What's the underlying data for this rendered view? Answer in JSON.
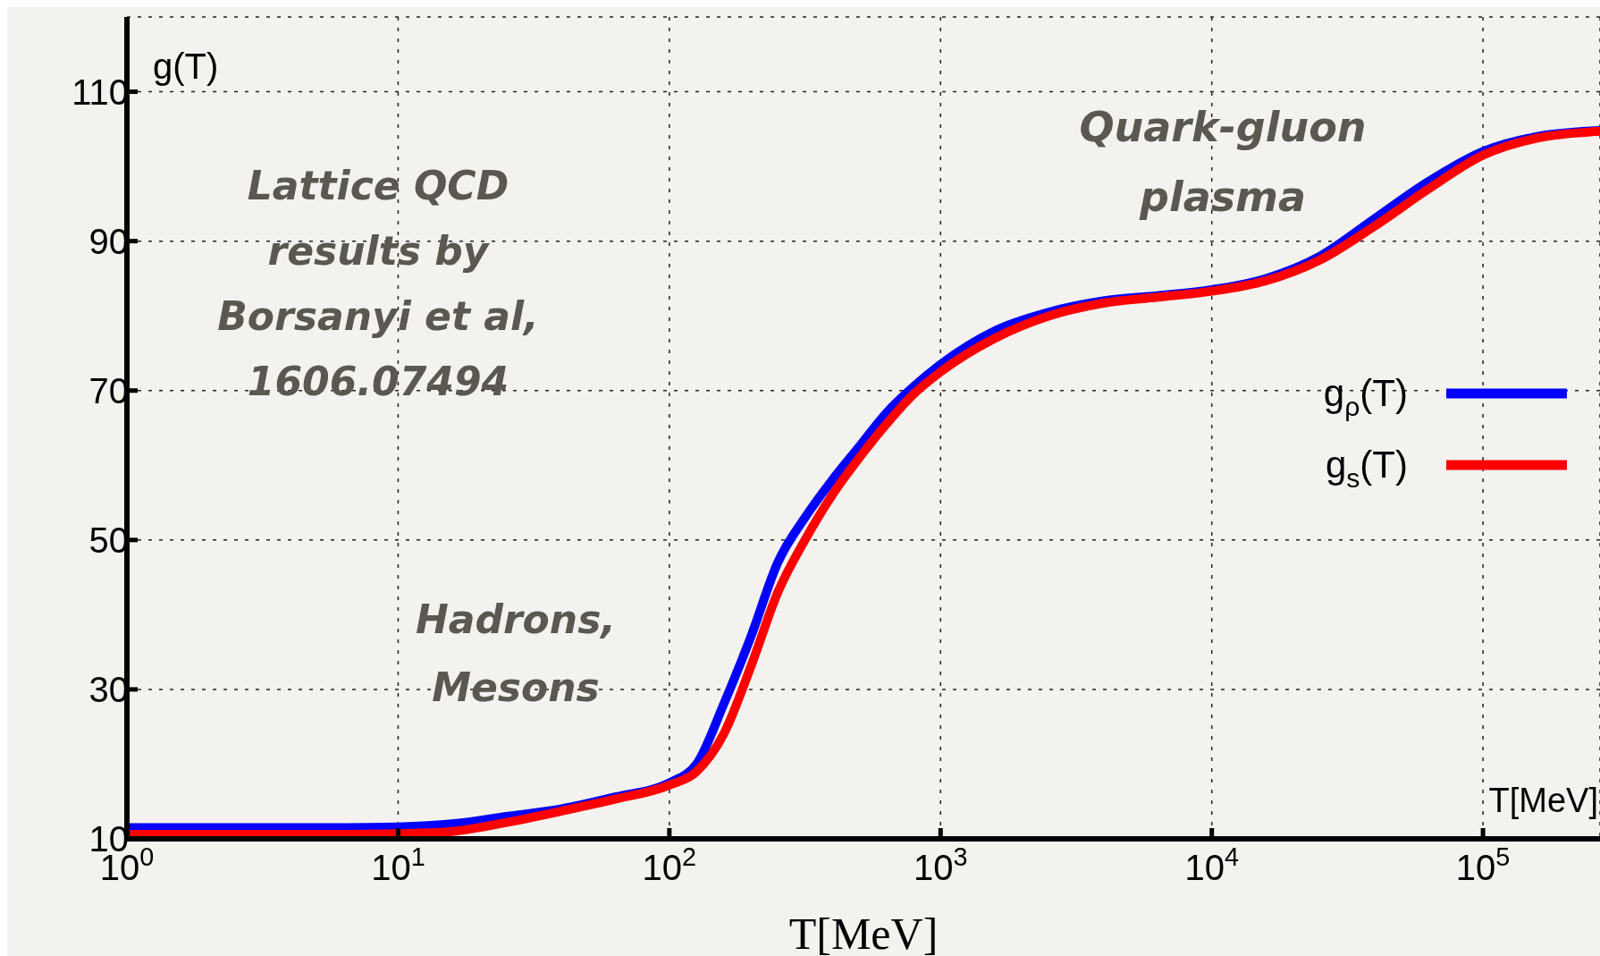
{
  "chart_data": {
    "type": "line",
    "xlabel": "T[MeV]",
    "ylabel": "g(T)",
    "log": "x",
    "grid": true,
    "legend": "right",
    "marker": "none",
    "line_style": "solid",
    "annotations": [
      "Lattice QCD\nresults by\nBorsanyi et al,\n1606.07494",
      "Hadrons,\nMesons",
      "Quark-gluon\nplasma",
      "T[MeV]"
    ],
    "xlim": [
      1,
      270000
    ],
    "ylim": [
      10,
      120
    ],
    "xticks": [
      {
        "value": 1,
        "label": "10$^{0}$"
      },
      {
        "value": 10,
        "label": "10$^{1}$"
      },
      {
        "value": 100,
        "label": "10$^{2}$"
      },
      {
        "value": 1000,
        "label": "10$^{3}$"
      },
      {
        "value": 10000,
        "label": "10$^{4}$"
      },
      {
        "value": 100000,
        "label": "10$^{5}$"
      }
    ],
    "yticks": [
      10,
      30,
      50,
      70,
      90,
      110
    ],
    "x": [
      1,
      1.585,
      2.512,
      3.981,
      6.31,
      10,
      15.85,
      25.12,
      39.81,
      63.1,
      100,
      125.9,
      158.5,
      199.5,
      251.2,
      316.2,
      398.1,
      501.2,
      631,
      794.3,
      1000,
      1585,
      2512,
      3981,
      6310,
      10000,
      15850,
      25120,
      39810,
      63100,
      100000,
      158500,
      270000
    ],
    "series": [
      {
        "name": "g$_{ρ}$(T)",
        "color": "#0000ff",
        "values": [
          11.5,
          11.5,
          11.5,
          11.5,
          11.5,
          11.6,
          12,
          13,
          14,
          15.6,
          17.5,
          20,
          28,
          37,
          47,
          53,
          58,
          62.5,
          67,
          70.5,
          73.5,
          78,
          80.5,
          82,
          82.7,
          83.5,
          85,
          88,
          93,
          98,
          102,
          104,
          104.8
        ]
      },
      {
        "name": "g$_{s}$(T)",
        "color": "#ff0000",
        "values": [
          10.6,
          10.6,
          10.6,
          10.6,
          10.6,
          10.7,
          11,
          12.2,
          13.7,
          15.3,
          17.2,
          19,
          24,
          33,
          43,
          50,
          56,
          61,
          65.5,
          69.5,
          72.5,
          77,
          80,
          81.7,
          82.5,
          83.3,
          84.7,
          87.5,
          92,
          97,
          101.5,
          103.8,
          104.7
        ]
      }
    ]
  }
}
